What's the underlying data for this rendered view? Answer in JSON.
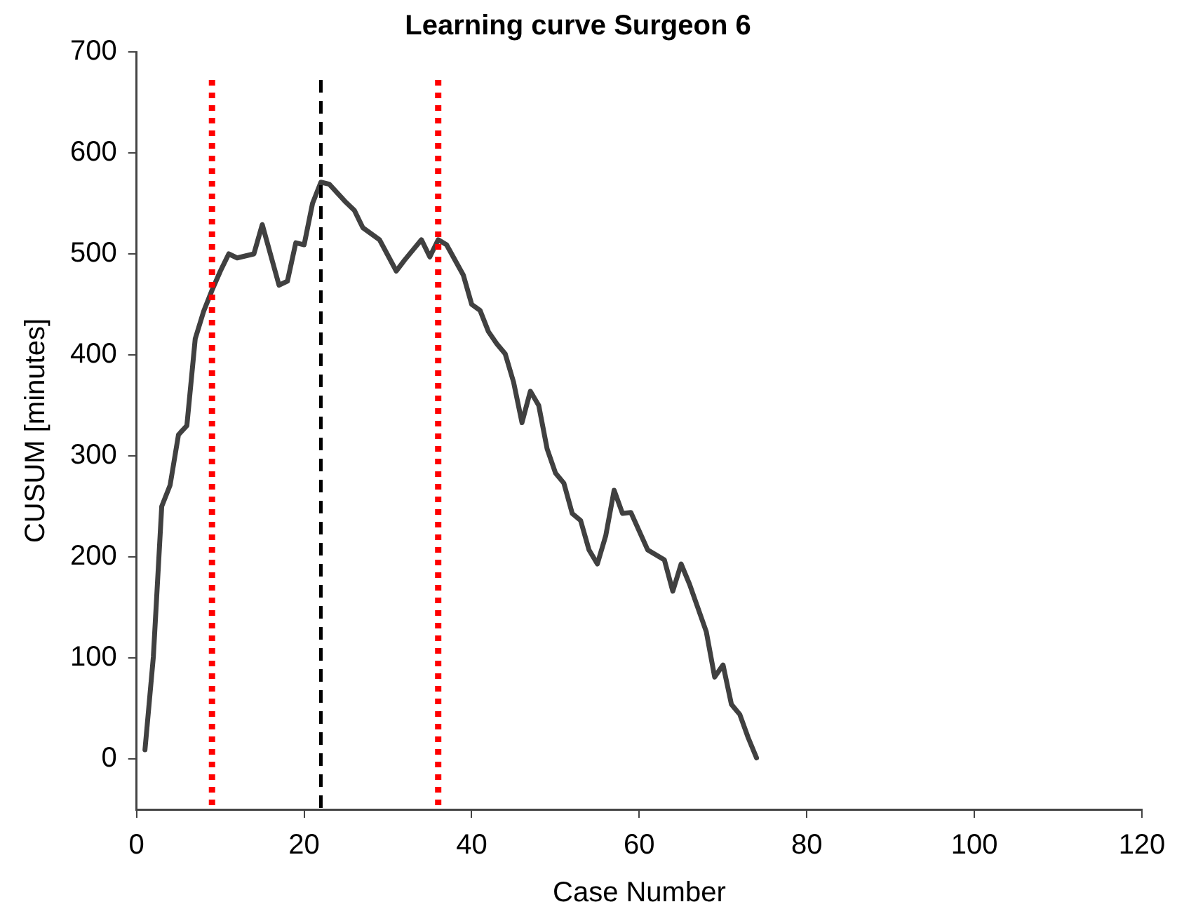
{
  "chart_data": {
    "type": "line",
    "title": "Learning curve Surgeon 6",
    "xlabel": "Case Number",
    "ylabel": "CUSUM [minutes]",
    "x": [
      1,
      2,
      3,
      4,
      5,
      6,
      7,
      8,
      9,
      10,
      11,
      12,
      14,
      15,
      17,
      18,
      19,
      20,
      21,
      22,
      23,
      25,
      26,
      27,
      29,
      31,
      32,
      34,
      35,
      36,
      37,
      39,
      40,
      41,
      42,
      43,
      44,
      45,
      46,
      47,
      48,
      49,
      50,
      51,
      52,
      53,
      54,
      55,
      56,
      57,
      58,
      59,
      61,
      63,
      64,
      65,
      66,
      68,
      69,
      70,
      71,
      72,
      73,
      74
    ],
    "series": [
      {
        "color": "#404040",
        "values": [
          9,
          101,
          250,
          271,
          321,
          330,
          416,
          443,
          464,
          483,
          500,
          496,
          500,
          529,
          469,
          473,
          511,
          509,
          550,
          571,
          569,
          551,
          543,
          526,
          514,
          483,
          494,
          514,
          497,
          514,
          509,
          479,
          450,
          444,
          423,
          411,
          401,
          373,
          333,
          364,
          350,
          307,
          283,
          273,
          243,
          236,
          207,
          193,
          221,
          266,
          243,
          244,
          207,
          197,
          166,
          193,
          173,
          126,
          81,
          93,
          54,
          44,
          21,
          1
        ]
      }
    ],
    "xlim": [
      0,
      120
    ],
    "xticks": [
      0,
      20,
      40,
      60,
      80,
      100,
      120
    ],
    "ylim": [
      -50,
      700
    ],
    "yticks": [
      0,
      100,
      200,
      300,
      400,
      500,
      600,
      700
    ],
    "ref_lines": [
      {
        "axis": "x",
        "value": 9,
        "color": "#ff0000",
        "line_style": "dotted"
      },
      {
        "axis": "x",
        "value": 22,
        "color": "#000000",
        "line_style": "dashed"
      },
      {
        "axis": "x",
        "value": 36,
        "color": "#ff0000",
        "line_style": "dotted"
      }
    ],
    "grid": false,
    "legend": false,
    "marker": "none",
    "line_style": "solid"
  }
}
